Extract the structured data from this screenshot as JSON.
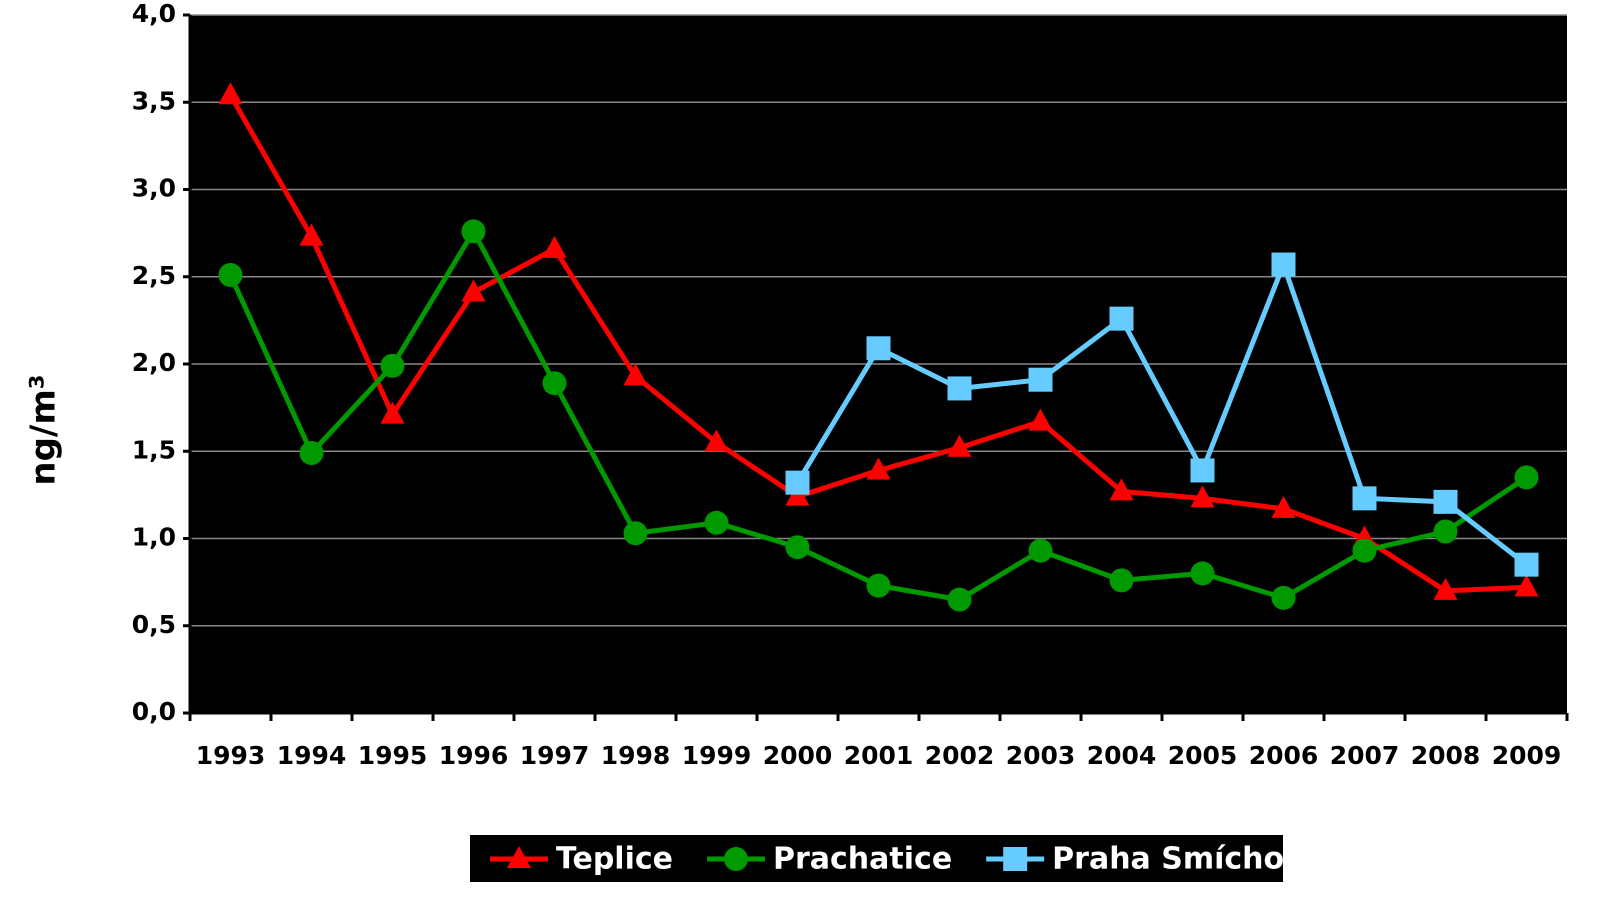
{
  "chart_data": {
    "type": "line",
    "y_label": "ng/m³",
    "categories": [
      "1993",
      "1994",
      "1995",
      "1996",
      "1997",
      "1998",
      "1999",
      "2000",
      "2001",
      "2002",
      "2003",
      "2004",
      "2005",
      "2006",
      "2007",
      "2008",
      "2009"
    ],
    "series": [
      {
        "name": "Teplice",
        "color": "#ff0000",
        "marker": "triangle",
        "values": [
          3.54,
          2.73,
          1.71,
          2.41,
          2.66,
          1.93,
          1.55,
          1.24,
          1.39,
          1.52,
          1.67,
          1.27,
          1.23,
          1.17,
          1.0,
          0.7,
          0.72
        ]
      },
      {
        "name": "Prachatice",
        "color": "#009900",
        "marker": "circle",
        "values": [
          2.51,
          1.49,
          1.99,
          2.76,
          1.89,
          1.03,
          1.09,
          0.95,
          0.73,
          0.65,
          0.93,
          0.76,
          0.8,
          0.66,
          0.93,
          1.04,
          1.35
        ]
      },
      {
        "name": "Praha Smíchov",
        "color": "#66ccff",
        "marker": "square",
        "values": [
          null,
          null,
          null,
          null,
          null,
          null,
          null,
          1.32,
          2.09,
          1.86,
          1.91,
          2.26,
          1.39,
          2.57,
          1.23,
          1.21,
          0.85
        ]
      }
    ],
    "ylim": [
      0,
      4
    ],
    "yticks": [
      {
        "value": 0,
        "label": "0,0"
      },
      {
        "value": 0.5,
        "label": "0,5"
      },
      {
        "value": 1,
        "label": "1,0"
      },
      {
        "value": 1.5,
        "label": "1,5"
      },
      {
        "value": 2,
        "label": "2,0"
      },
      {
        "value": 2.5,
        "label": "2,5"
      },
      {
        "value": 3,
        "label": "3,0"
      },
      {
        "value": 3.5,
        "label": "3,5"
      },
      {
        "value": 4,
        "label": "4,0"
      }
    ],
    "grid": true,
    "legend": "bottom",
    "plot_background": "#000000"
  }
}
